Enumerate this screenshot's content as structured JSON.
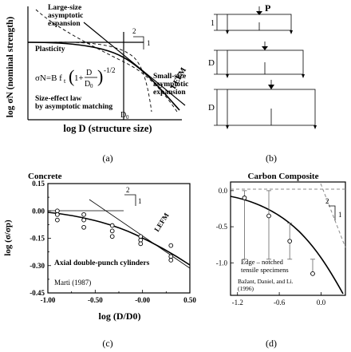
{
  "panel_a": {
    "ylabel": "log σN (nominal strength)",
    "xlabel": "log D (structure size)",
    "large_size_label": [
      "Large-size",
      "asymptotic",
      "expansion"
    ],
    "small_size_label": [
      "Small-size",
      "asymptotic",
      "expansion"
    ],
    "plasticity_label": "Plasticity",
    "formula": "σN=B ft(1+D/D0)^-1/2",
    "formula_lhs": "σN=B f",
    "law_label": [
      "Size-effect law",
      "by asymptotic matching"
    ],
    "lefm_label": "LEFM",
    "slope_run": "1",
    "slope_rise": "2",
    "d0_label": "D0",
    "caption": "(a)"
  },
  "panel_b": {
    "load_label": "P",
    "size_labels": [
      "1",
      "D",
      "D"
    ],
    "caption": "(b)"
  },
  "chart_data": [
    {
      "type": "scatter",
      "title": "Concrete",
      "xlabel": "log (D/D0)",
      "ylabel": "log (σ/σp)",
      "xlim": [
        -1.0,
        0.5
      ],
      "ylim": [
        -0.45,
        0.15
      ],
      "xticks": [
        "-1.00",
        "-0.50",
        "-0.00",
        "0.50"
      ],
      "yticks": [
        "0.15",
        "0.00",
        "-0.15",
        "-0.30",
        "-0.45"
      ],
      "x_minor_ticks": [
        -0.75,
        -0.25,
        0.25
      ],
      "y_minor_ticks": [
        0.075,
        -0.075,
        -0.225,
        -0.375
      ],
      "series": [
        {
          "x": [
            -0.9,
            -0.9,
            -0.9,
            -0.62,
            -0.62,
            -0.62,
            -0.32,
            -0.32,
            -0.32,
            -0.02,
            -0.02,
            -0.02,
            0.3,
            0.3,
            0.3
          ],
          "y": [
            0.0,
            -0.02,
            -0.05,
            -0.02,
            -0.05,
            -0.09,
            -0.08,
            -0.11,
            -0.14,
            -0.14,
            -0.16,
            -0.18,
            -0.19,
            -0.25,
            -0.27
          ]
        }
      ],
      "slope_rise": "2",
      "slope_run": "1",
      "lefm_label": "LEFM",
      "annotation": "Axial double-punch cylinders",
      "source": "Marti (1987)",
      "caption": "(c)"
    },
    {
      "type": "scatter",
      "title": "Carbon Composite",
      "xlim": [
        -1.3,
        0.35
      ],
      "ylim": [
        -1.45,
        0.12
      ],
      "xticks": [
        "-1.2",
        "-0.6",
        "0.0"
      ],
      "yticks": [
        "0.0",
        "-0.5",
        "-1.0"
      ],
      "series": [
        {
          "x": [
            -1.1,
            -0.75,
            -0.45,
            -0.12
          ],
          "y": [
            -0.1,
            -0.35,
            -0.7,
            -1.15
          ],
          "err_low": [
            -0.95,
            -0.95,
            -0.95,
            -1.15
          ],
          "err_high": [
            0.0,
            0.0,
            -0.45,
            -0.95
          ]
        }
      ],
      "slope_rise": "2",
      "slope_run": "1",
      "annotation": [
        "Edge – notched",
        "tensile specimens"
      ],
      "source": [
        "Bažant, Daniel, and Li.",
        "(1996)"
      ],
      "caption": "(d)"
    }
  ]
}
